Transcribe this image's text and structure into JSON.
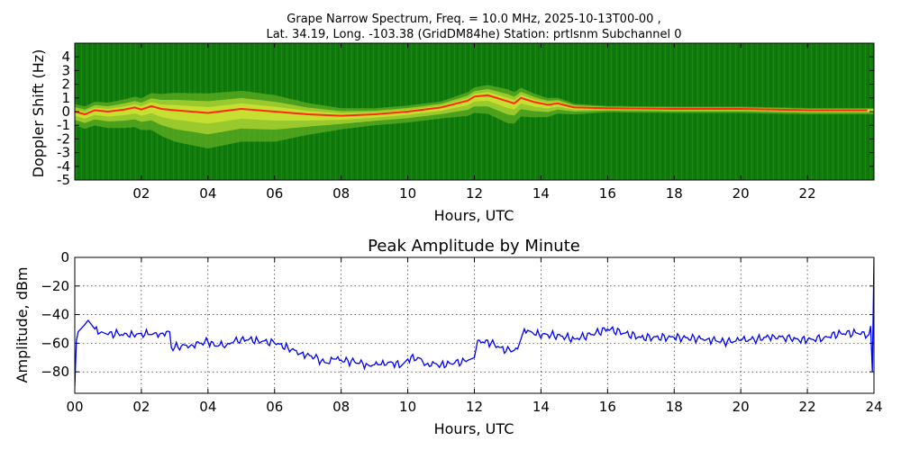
{
  "figure": {
    "title_line1": "Grape Narrow Spectrum, Freq. = 10.0 MHz, 2025-10-13T00-00 ,",
    "title_line2": "Lat.  34.19, Long. -103.38 (GridDM84he) Station: prtlsnm Subchannel 0"
  },
  "chart_data": [
    {
      "type": "heatmap",
      "xlabel": "Hours, UTC",
      "ylabel": "Doppler Shift (Hz)",
      "xlim": [
        0,
        24
      ],
      "ylim": [
        -5,
        5
      ],
      "x_ticks": [
        2,
        4,
        6,
        8,
        10,
        12,
        14,
        16,
        18,
        20,
        22
      ],
      "x_tick_labels": [
        "02",
        "04",
        "06",
        "08",
        "10",
        "12",
        "14",
        "16",
        "18",
        "20",
        "22"
      ],
      "y_ticks": [
        4,
        3,
        2,
        1,
        0,
        -1,
        -2,
        -3,
        -4,
        -5
      ],
      "y_tick_labels": [
        "4",
        "3",
        "2",
        "1",
        "0",
        "-1",
        "-2",
        "-3",
        "-4",
        "-5"
      ],
      "colors": {
        "background": "#117a0f",
        "mid": "#c8e030",
        "peak": "#ff2a10"
      },
      "peak_trace": {
        "x": [
          0,
          0.3,
          0.6,
          1.0,
          1.5,
          1.8,
          2.0,
          2.3,
          2.6,
          3.0,
          4.0,
          5.0,
          6.0,
          7.0,
          8.0,
          9.0,
          10.0,
          11.0,
          11.8,
          12.0,
          12.4,
          12.8,
          13.2,
          13.4,
          13.8,
          14.2,
          14.5,
          15.0,
          16.0,
          18.0,
          20.0,
          22.0,
          23.8
        ],
        "y": [
          0.0,
          -0.2,
          0.1,
          0.0,
          0.15,
          0.3,
          0.15,
          0.4,
          0.2,
          0.1,
          -0.1,
          0.2,
          0.0,
          -0.2,
          -0.3,
          -0.2,
          0.0,
          0.3,
          0.8,
          1.1,
          1.2,
          0.9,
          0.6,
          1.0,
          0.7,
          0.5,
          0.6,
          0.3,
          0.25,
          0.2,
          0.2,
          0.1,
          0.1
        ]
      },
      "spread_hz": {
        "x": [
          0,
          1,
          2,
          3,
          4,
          5,
          6,
          7,
          8,
          9,
          10,
          11,
          12,
          13,
          14,
          15,
          16,
          18,
          20,
          22,
          24
        ],
        "y": [
          1.0,
          1.2,
          1.5,
          2.3,
          2.6,
          2.4,
          2.2,
          1.5,
          1.0,
          0.8,
          0.8,
          0.8,
          1.2,
          1.6,
          1.0,
          0.5,
          0.3,
          0.3,
          0.3,
          0.3,
          0.3
        ]
      }
    },
    {
      "type": "line",
      "title": "Peak Amplitude by Minute",
      "xlabel": "Hours, UTC",
      "ylabel": "Amplitude, dBm",
      "xlim": [
        0,
        24
      ],
      "ylim": [
        -95,
        0
      ],
      "grid": true,
      "x_ticks": [
        0,
        2,
        4,
        6,
        8,
        10,
        12,
        14,
        16,
        18,
        20,
        22,
        24
      ],
      "x_tick_labels": [
        "00",
        "02",
        "04",
        "06",
        "08",
        "10",
        "12",
        "14",
        "16",
        "18",
        "20",
        "22",
        "24"
      ],
      "y_ticks": [
        0,
        -20,
        -40,
        -60,
        -80
      ],
      "y_tick_labels": [
        "0",
        "−20",
        "−40",
        "−60",
        "−80"
      ],
      "line_color": "#0000ff",
      "series": [
        {
          "x": [
            0,
            0.05,
            0.1,
            0.3,
            0.4,
            0.6,
            0.8,
            1.0,
            1.3,
            1.6,
            2.0,
            2.3,
            2.6,
            2.85,
            2.9,
            3.2,
            3.5,
            4.0,
            4.3,
            4.6,
            5.0,
            5.5,
            6.0,
            6.4,
            6.8,
            7.2,
            7.6,
            7.8,
            8.0,
            8.4,
            8.8,
            9.2,
            9.5,
            9.8,
            10.0,
            10.3,
            10.6,
            11.0,
            11.4,
            11.8,
            12.0,
            12.1,
            12.5,
            12.8,
            13.1,
            13.3,
            13.5,
            13.8,
            14.2,
            14.6,
            15.0,
            15.5,
            16.0,
            16.5,
            17.0,
            18.0,
            19.0,
            19.5,
            20.0,
            20.5,
            21.0,
            21.5,
            22.0,
            22.5,
            23.0,
            23.5,
            23.85,
            23.9,
            23.95,
            24.0
          ],
          "y": [
            -90,
            -58,
            -52,
            -47,
            -44,
            -50,
            -52,
            -54,
            -53,
            -55,
            -53,
            -54,
            -53,
            -52,
            -63,
            -62,
            -61,
            -59,
            -62,
            -60,
            -57,
            -58,
            -60,
            -63,
            -67,
            -70,
            -74,
            -71,
            -72,
            -73,
            -75,
            -75,
            -73,
            -76,
            -71,
            -70,
            -74,
            -75,
            -74,
            -72,
            -70,
            -58,
            -60,
            -63,
            -66,
            -64,
            -50,
            -54,
            -54,
            -55,
            -57,
            -54,
            -50,
            -53,
            -56,
            -56,
            -57,
            -59,
            -58,
            -57,
            -55,
            -57,
            -58,
            -56,
            -53,
            -53,
            -54,
            -48,
            -80,
            -1
          ]
        }
      ]
    }
  ]
}
